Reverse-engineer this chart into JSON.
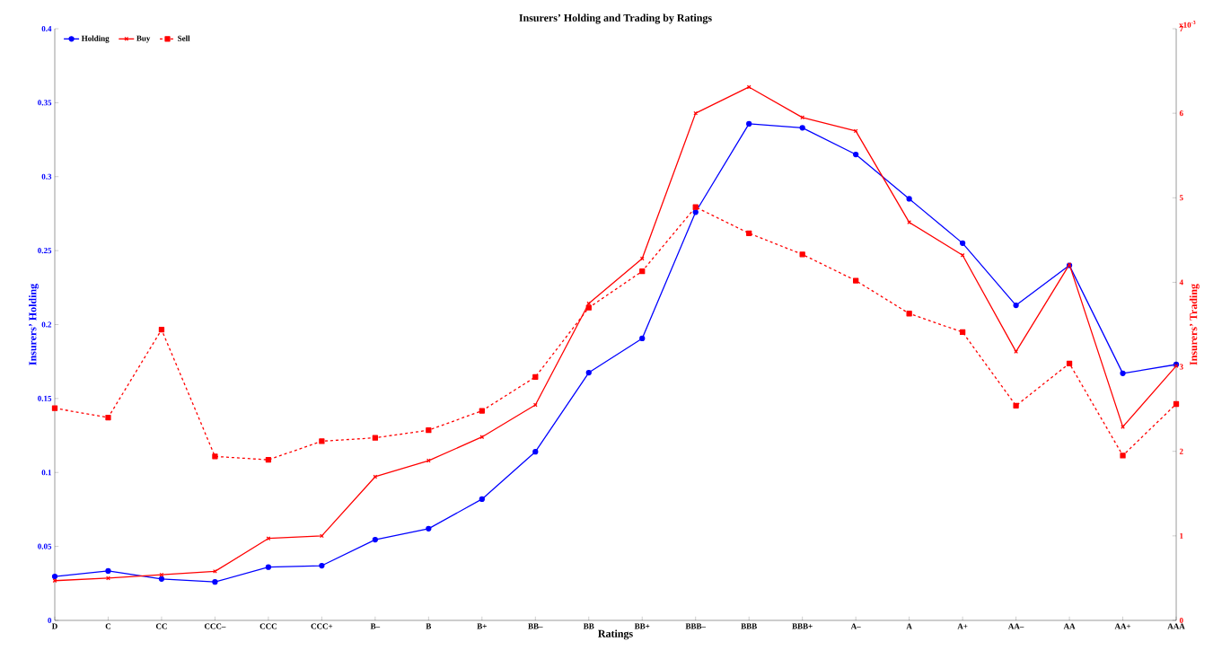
{
  "chart_data": {
    "type": "line",
    "title": "Insurers’ Holding and Trading by Ratings",
    "xlabel": "Ratings",
    "ylabel": "Insurers’ Holding",
    "y2label": "Insurers’ Trading",
    "categories": [
      "D",
      "C",
      "CC",
      "CCC–",
      "CCC",
      "CCC+",
      "B–",
      "B",
      "B+",
      "BB–",
      "BB",
      "BB+",
      "BBB–",
      "BBB",
      "BBB+",
      "A–",
      "A",
      "A+",
      "AA–",
      "AA",
      "AA+",
      "AAA"
    ],
    "series": [
      {
        "name": "Holding",
        "color": "#0000ff",
        "marker": "circle",
        "line_style": "solid",
        "values": [
          0.0297,
          0.0334,
          0.028,
          0.026,
          0.036,
          0.037,
          0.0546,
          0.062,
          0.082,
          0.114,
          0.1675,
          0.1906,
          0.276,
          0.3357,
          0.333,
          0.315,
          0.285,
          0.255,
          0.213,
          0.24,
          0.167,
          0.173
        ]
      },
      {
        "name": "Buy",
        "color": "#ff0000",
        "marker": "cross",
        "line_style": "solid",
        "axis": "y2",
        "values": [
          0.47,
          0.5,
          0.54,
          0.58,
          0.97,
          1.0,
          1.7,
          1.89,
          2.17,
          2.55,
          3.75,
          4.28,
          6.0,
          6.31,
          5.95,
          5.79,
          4.71,
          4.32,
          3.18,
          4.21,
          2.29,
          3.01
        ]
      },
      {
        "name": "Sell",
        "color": "#ff0000",
        "marker": "square",
        "line_style": "dashed",
        "axis": "y2",
        "values": [
          2.51,
          2.4,
          3.44,
          1.94,
          1.9,
          2.12,
          2.16,
          2.25,
          2.48,
          2.88,
          3.7,
          4.13,
          4.89,
          4.58,
          4.33,
          4.02,
          3.63,
          3.41,
          2.54,
          3.04,
          1.95,
          2.56
        ]
      }
    ],
    "ylim": [
      0,
      0.4
    ],
    "yticks": [
      0,
      0.05,
      0.1,
      0.15,
      0.2,
      0.25,
      0.3,
      0.35,
      0.4
    ],
    "y2lim": [
      0,
      7
    ],
    "y2ticks": [
      0,
      1,
      2,
      3,
      4,
      5,
      6,
      7
    ],
    "annotations": [
      "x10$^{-3}$"
    ],
    "legend": "top left",
    "grid": false
  }
}
